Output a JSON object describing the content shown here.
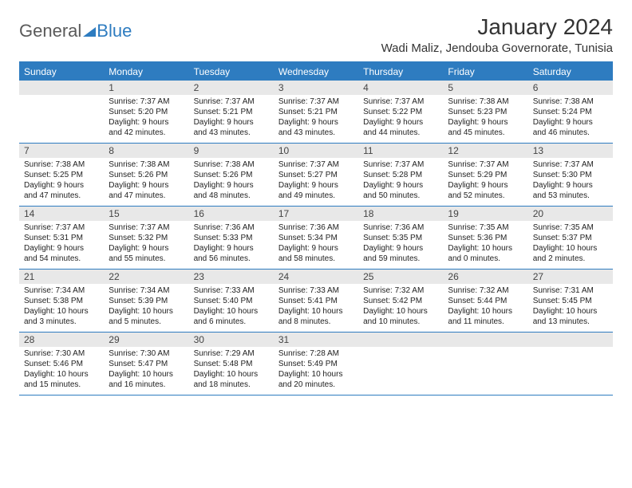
{
  "logo": {
    "text1": "General",
    "text2": "Blue"
  },
  "title": "January 2024",
  "location": "Wadi Maliz, Jendouba Governorate, Tunisia",
  "colors": {
    "accent": "#2e7cc0",
    "header_text": "#ffffff",
    "date_bg": "#e8e8e8",
    "body_text": "#222222",
    "logo_gray": "#5a5a5a"
  },
  "day_headers": [
    "Sunday",
    "Monday",
    "Tuesday",
    "Wednesday",
    "Thursday",
    "Friday",
    "Saturday"
  ],
  "weeks": [
    [
      {
        "date": "",
        "sunrise": "",
        "sunset": "",
        "daylight": ""
      },
      {
        "date": "1",
        "sunrise": "Sunrise: 7:37 AM",
        "sunset": "Sunset: 5:20 PM",
        "daylight": "Daylight: 9 hours and 42 minutes."
      },
      {
        "date": "2",
        "sunrise": "Sunrise: 7:37 AM",
        "sunset": "Sunset: 5:21 PM",
        "daylight": "Daylight: 9 hours and 43 minutes."
      },
      {
        "date": "3",
        "sunrise": "Sunrise: 7:37 AM",
        "sunset": "Sunset: 5:21 PM",
        "daylight": "Daylight: 9 hours and 43 minutes."
      },
      {
        "date": "4",
        "sunrise": "Sunrise: 7:37 AM",
        "sunset": "Sunset: 5:22 PM",
        "daylight": "Daylight: 9 hours and 44 minutes."
      },
      {
        "date": "5",
        "sunrise": "Sunrise: 7:38 AM",
        "sunset": "Sunset: 5:23 PM",
        "daylight": "Daylight: 9 hours and 45 minutes."
      },
      {
        "date": "6",
        "sunrise": "Sunrise: 7:38 AM",
        "sunset": "Sunset: 5:24 PM",
        "daylight": "Daylight: 9 hours and 46 minutes."
      }
    ],
    [
      {
        "date": "7",
        "sunrise": "Sunrise: 7:38 AM",
        "sunset": "Sunset: 5:25 PM",
        "daylight": "Daylight: 9 hours and 47 minutes."
      },
      {
        "date": "8",
        "sunrise": "Sunrise: 7:38 AM",
        "sunset": "Sunset: 5:26 PM",
        "daylight": "Daylight: 9 hours and 47 minutes."
      },
      {
        "date": "9",
        "sunrise": "Sunrise: 7:38 AM",
        "sunset": "Sunset: 5:26 PM",
        "daylight": "Daylight: 9 hours and 48 minutes."
      },
      {
        "date": "10",
        "sunrise": "Sunrise: 7:37 AM",
        "sunset": "Sunset: 5:27 PM",
        "daylight": "Daylight: 9 hours and 49 minutes."
      },
      {
        "date": "11",
        "sunrise": "Sunrise: 7:37 AM",
        "sunset": "Sunset: 5:28 PM",
        "daylight": "Daylight: 9 hours and 50 minutes."
      },
      {
        "date": "12",
        "sunrise": "Sunrise: 7:37 AM",
        "sunset": "Sunset: 5:29 PM",
        "daylight": "Daylight: 9 hours and 52 minutes."
      },
      {
        "date": "13",
        "sunrise": "Sunrise: 7:37 AM",
        "sunset": "Sunset: 5:30 PM",
        "daylight": "Daylight: 9 hours and 53 minutes."
      }
    ],
    [
      {
        "date": "14",
        "sunrise": "Sunrise: 7:37 AM",
        "sunset": "Sunset: 5:31 PM",
        "daylight": "Daylight: 9 hours and 54 minutes."
      },
      {
        "date": "15",
        "sunrise": "Sunrise: 7:37 AM",
        "sunset": "Sunset: 5:32 PM",
        "daylight": "Daylight: 9 hours and 55 minutes."
      },
      {
        "date": "16",
        "sunrise": "Sunrise: 7:36 AM",
        "sunset": "Sunset: 5:33 PM",
        "daylight": "Daylight: 9 hours and 56 minutes."
      },
      {
        "date": "17",
        "sunrise": "Sunrise: 7:36 AM",
        "sunset": "Sunset: 5:34 PM",
        "daylight": "Daylight: 9 hours and 58 minutes."
      },
      {
        "date": "18",
        "sunrise": "Sunrise: 7:36 AM",
        "sunset": "Sunset: 5:35 PM",
        "daylight": "Daylight: 9 hours and 59 minutes."
      },
      {
        "date": "19",
        "sunrise": "Sunrise: 7:35 AM",
        "sunset": "Sunset: 5:36 PM",
        "daylight": "Daylight: 10 hours and 0 minutes."
      },
      {
        "date": "20",
        "sunrise": "Sunrise: 7:35 AM",
        "sunset": "Sunset: 5:37 PM",
        "daylight": "Daylight: 10 hours and 2 minutes."
      }
    ],
    [
      {
        "date": "21",
        "sunrise": "Sunrise: 7:34 AM",
        "sunset": "Sunset: 5:38 PM",
        "daylight": "Daylight: 10 hours and 3 minutes."
      },
      {
        "date": "22",
        "sunrise": "Sunrise: 7:34 AM",
        "sunset": "Sunset: 5:39 PM",
        "daylight": "Daylight: 10 hours and 5 minutes."
      },
      {
        "date": "23",
        "sunrise": "Sunrise: 7:33 AM",
        "sunset": "Sunset: 5:40 PM",
        "daylight": "Daylight: 10 hours and 6 minutes."
      },
      {
        "date": "24",
        "sunrise": "Sunrise: 7:33 AM",
        "sunset": "Sunset: 5:41 PM",
        "daylight": "Daylight: 10 hours and 8 minutes."
      },
      {
        "date": "25",
        "sunrise": "Sunrise: 7:32 AM",
        "sunset": "Sunset: 5:42 PM",
        "daylight": "Daylight: 10 hours and 10 minutes."
      },
      {
        "date": "26",
        "sunrise": "Sunrise: 7:32 AM",
        "sunset": "Sunset: 5:44 PM",
        "daylight": "Daylight: 10 hours and 11 minutes."
      },
      {
        "date": "27",
        "sunrise": "Sunrise: 7:31 AM",
        "sunset": "Sunset: 5:45 PM",
        "daylight": "Daylight: 10 hours and 13 minutes."
      }
    ],
    [
      {
        "date": "28",
        "sunrise": "Sunrise: 7:30 AM",
        "sunset": "Sunset: 5:46 PM",
        "daylight": "Daylight: 10 hours and 15 minutes."
      },
      {
        "date": "29",
        "sunrise": "Sunrise: 7:30 AM",
        "sunset": "Sunset: 5:47 PM",
        "daylight": "Daylight: 10 hours and 16 minutes."
      },
      {
        "date": "30",
        "sunrise": "Sunrise: 7:29 AM",
        "sunset": "Sunset: 5:48 PM",
        "daylight": "Daylight: 10 hours and 18 minutes."
      },
      {
        "date": "31",
        "sunrise": "Sunrise: 7:28 AM",
        "sunset": "Sunset: 5:49 PM",
        "daylight": "Daylight: 10 hours and 20 minutes."
      },
      {
        "date": "",
        "sunrise": "",
        "sunset": "",
        "daylight": ""
      },
      {
        "date": "",
        "sunrise": "",
        "sunset": "",
        "daylight": ""
      },
      {
        "date": "",
        "sunrise": "",
        "sunset": "",
        "daylight": ""
      }
    ]
  ]
}
